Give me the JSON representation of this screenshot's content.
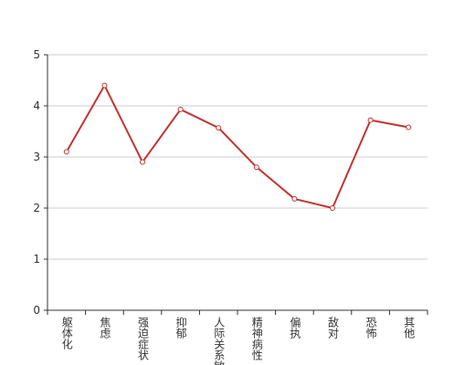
{
  "chart_data": {
    "type": "line",
    "categories": [
      "躯体化",
      "焦虑",
      "强迫症状",
      "抑郁",
      "人际关系敏感",
      "精神病性",
      "偏执",
      "敌对",
      "恐怖",
      "其他"
    ],
    "series": [
      {
        "color": "#c23531",
        "values": [
          3.1,
          4.4,
          2.9,
          3.93,
          3.57,
          2.8,
          2.18,
          2.0,
          3.72,
          3.58
        ]
      }
    ],
    "ylim": [
      0,
      5
    ],
    "yticks": [
      0,
      1,
      2,
      3,
      4,
      5
    ],
    "grid": true
  }
}
